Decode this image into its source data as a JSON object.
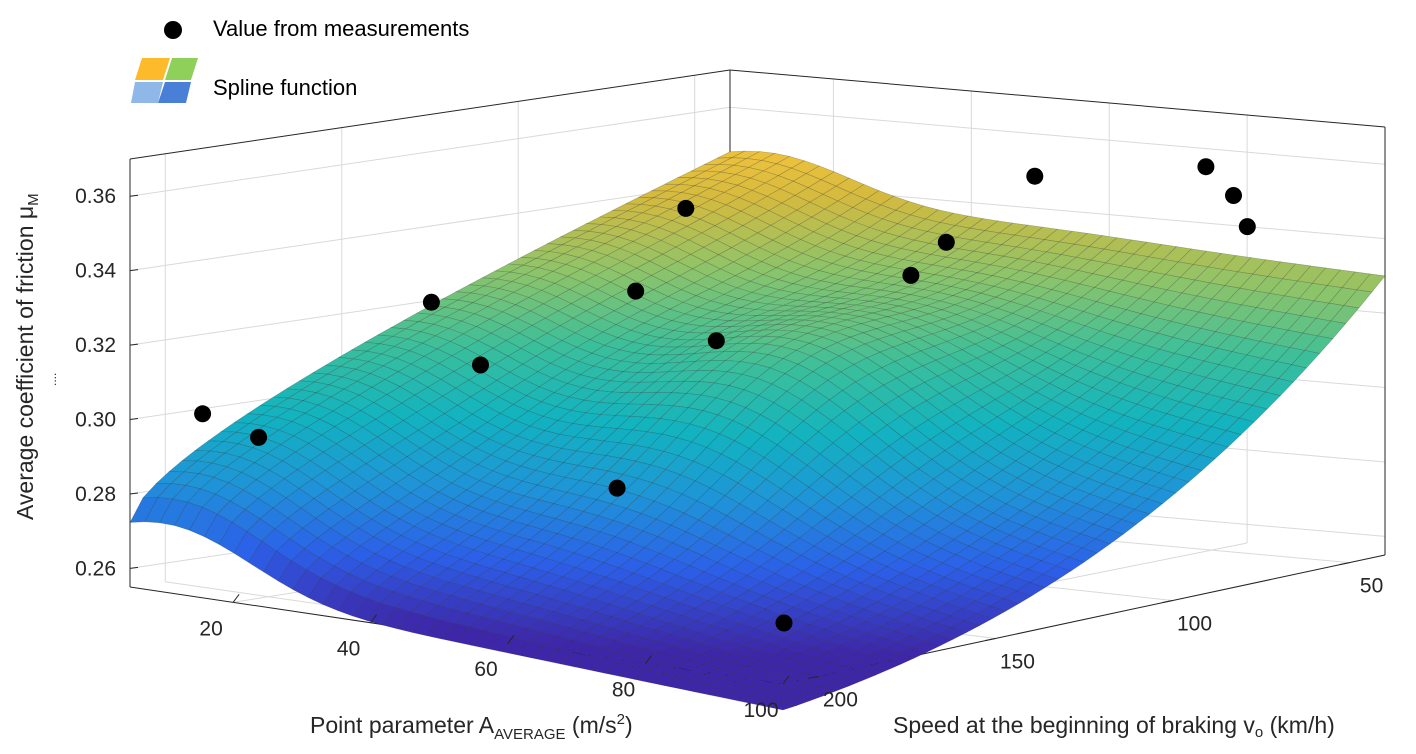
{
  "chart_data": {
    "type": "surface3d",
    "legend": {
      "markers_label": "Value from measurements",
      "surface_label": "Spline function",
      "position": "top-left"
    },
    "axes": {
      "x": {
        "label_main": "Point parameter A",
        "label_sub": "AVERAGE",
        "label_unit": " (m/s",
        "label_sup": "2",
        "label_close": ")",
        "range": [
          5,
          100
        ],
        "ticks": [
          "20",
          "40",
          "60",
          "80",
          "100"
        ],
        "tick_values": [
          20,
          40,
          60,
          80,
          100
        ]
      },
      "y": {
        "label_main": "Speed at the beginning of braking v",
        "label_sub": "o",
        "label_unit": " (km/h)",
        "range": [
          40,
          210
        ],
        "ticks": [
          "50",
          "100",
          "150",
          "200"
        ],
        "tick_values": [
          50,
          100,
          150,
          200
        ]
      },
      "z": {
        "label_main": "Average coefficient of friction μ",
        "label_sub": "M",
        "label_extra": "....",
        "range": [
          0.255,
          0.37
        ],
        "ticks": [
          "0.26",
          "0.28",
          "0.30",
          "0.32",
          "0.34",
          "0.36"
        ],
        "tick_values": [
          0.26,
          0.28,
          0.3,
          0.32,
          0.34,
          0.36
        ]
      }
    },
    "measurements": [
      {
        "a": 13,
        "v": 205,
        "mu": 0.303
      },
      {
        "a": 16,
        "v": 195,
        "mu": 0.296
      },
      {
        "a": 36,
        "v": 185,
        "mu": 0.336
      },
      {
        "a": 38,
        "v": 175,
        "mu": 0.318
      },
      {
        "a": 55,
        "v": 150,
        "mu": 0.36
      },
      {
        "a": 58,
        "v": 170,
        "mu": 0.342
      },
      {
        "a": 62,
        "v": 155,
        "mu": 0.327
      },
      {
        "a": 63,
        "v": 185,
        "mu": 0.293
      },
      {
        "a": 80,
        "v": 100,
        "mu": 0.365
      },
      {
        "a": 80,
        "v": 125,
        "mu": 0.352
      },
      {
        "a": 80,
        "v": 135,
        "mu": 0.345
      },
      {
        "a": 92,
        "v": 75,
        "mu": 0.365
      },
      {
        "a": 96,
        "v": 75,
        "mu": 0.358
      },
      {
        "a": 98,
        "v": 75,
        "mu": 0.35
      },
      {
        "a": 95,
        "v": 200,
        "mu": 0.268
      }
    ],
    "colormap": [
      "#3e26a8",
      "#2c5fe8",
      "#1f94d8",
      "#12b3c0",
      "#3bbf9b",
      "#8cc46a",
      "#d4ba3f",
      "#fdc73a",
      "#f9e82a"
    ]
  }
}
